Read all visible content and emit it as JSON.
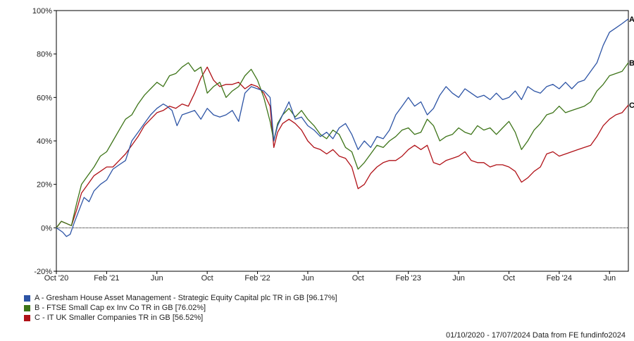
{
  "chart_data": {
    "type": "line",
    "x_tick_labels": [
      "Oct '20",
      "Feb '21",
      "Jun",
      "Oct",
      "Feb '22",
      "Jun",
      "Oct",
      "Feb '23",
      "Jun",
      "Oct",
      "Feb '24",
      "Jun"
    ],
    "x_tick_months": [
      0,
      4,
      8,
      12,
      16,
      20,
      24,
      28,
      32,
      36,
      40,
      44
    ],
    "x_range_months": [
      0,
      45.5
    ],
    "y_tick_labels": [
      "-20%",
      "0%",
      "20%",
      "40%",
      "60%",
      "80%",
      "100%"
    ],
    "y_ticks": [
      -20,
      0,
      20,
      40,
      60,
      80,
      100
    ],
    "ylim": [
      -20,
      100
    ],
    "grid": false,
    "zero_line": true,
    "series": [
      {
        "key": "A",
        "name": "A - Gresham House Asset Management - Strategic Equity Capital plc TR in GB [96.17%]",
        "color": "#2d54a5",
        "points": [
          [
            0,
            0
          ],
          [
            0.5,
            -2
          ],
          [
            0.8,
            -4
          ],
          [
            1.1,
            -3
          ],
          [
            1.4,
            2
          ],
          [
            1.8,
            8
          ],
          [
            2.2,
            14
          ],
          [
            2.6,
            12
          ],
          [
            3,
            17
          ],
          [
            3.5,
            20
          ],
          [
            4,
            22
          ],
          [
            4.5,
            27
          ],
          [
            5,
            29
          ],
          [
            5.5,
            31
          ],
          [
            6,
            40
          ],
          [
            6.5,
            44
          ],
          [
            7,
            48
          ],
          [
            7.5,
            52
          ],
          [
            8,
            55
          ],
          [
            8.5,
            57
          ],
          [
            8.8,
            56
          ],
          [
            9.2,
            54
          ],
          [
            9.6,
            47
          ],
          [
            10,
            52
          ],
          [
            10.5,
            53
          ],
          [
            11,
            54
          ],
          [
            11.5,
            50
          ],
          [
            12,
            55
          ],
          [
            12.5,
            52
          ],
          [
            13,
            51
          ],
          [
            13.5,
            52
          ],
          [
            14,
            54
          ],
          [
            14.5,
            49
          ],
          [
            15,
            62
          ],
          [
            15.5,
            65
          ],
          [
            16,
            64
          ],
          [
            16.5,
            63
          ],
          [
            17,
            60
          ],
          [
            17.3,
            40
          ],
          [
            17.6,
            47
          ],
          [
            18,
            52
          ],
          [
            18.5,
            58
          ],
          [
            19,
            50
          ],
          [
            19.5,
            51
          ],
          [
            20,
            47
          ],
          [
            20.5,
            45
          ],
          [
            21,
            42
          ],
          [
            21.5,
            44
          ],
          [
            22,
            41
          ],
          [
            22.5,
            46
          ],
          [
            23,
            48
          ],
          [
            23.5,
            43
          ],
          [
            24,
            36
          ],
          [
            24.5,
            40
          ],
          [
            25,
            37
          ],
          [
            25.5,
            42
          ],
          [
            26,
            41
          ],
          [
            26.5,
            45
          ],
          [
            27,
            52
          ],
          [
            27.5,
            56
          ],
          [
            28,
            60
          ],
          [
            28.5,
            56
          ],
          [
            29,
            58
          ],
          [
            29.5,
            52
          ],
          [
            30,
            55
          ],
          [
            30.5,
            61
          ],
          [
            31,
            65
          ],
          [
            31.5,
            62
          ],
          [
            32,
            60
          ],
          [
            32.5,
            64
          ],
          [
            33,
            62
          ],
          [
            33.5,
            60
          ],
          [
            34,
            61
          ],
          [
            34.5,
            59
          ],
          [
            35,
            62
          ],
          [
            35.5,
            59
          ],
          [
            36,
            60
          ],
          [
            36.5,
            63
          ],
          [
            37,
            59
          ],
          [
            37.5,
            65
          ],
          [
            38,
            63
          ],
          [
            38.5,
            62
          ],
          [
            39,
            65
          ],
          [
            39.5,
            66
          ],
          [
            40,
            64
          ],
          [
            40.5,
            67
          ],
          [
            41,
            64
          ],
          [
            41.5,
            67
          ],
          [
            42,
            68
          ],
          [
            42.5,
            72
          ],
          [
            43,
            76
          ],
          [
            43.5,
            84
          ],
          [
            44,
            90
          ],
          [
            44.5,
            92
          ],
          [
            45,
            94
          ],
          [
            45.5,
            96.17
          ]
        ]
      },
      {
        "key": "B",
        "name": "B - FTSE Small Cap ex Inv Co TR in GB [76.02%]",
        "color": "#3d7418",
        "points": [
          [
            0,
            0
          ],
          [
            0.4,
            3
          ],
          [
            0.8,
            2
          ],
          [
            1.2,
            1
          ],
          [
            1.6,
            11
          ],
          [
            2,
            20
          ],
          [
            2.5,
            24
          ],
          [
            3,
            28
          ],
          [
            3.5,
            33
          ],
          [
            4,
            35
          ],
          [
            4.5,
            40
          ],
          [
            5,
            45
          ],
          [
            5.5,
            50
          ],
          [
            6,
            52
          ],
          [
            6.5,
            57
          ],
          [
            7,
            61
          ],
          [
            7.5,
            64
          ],
          [
            8,
            67
          ],
          [
            8.5,
            65
          ],
          [
            9,
            70
          ],
          [
            9.5,
            71
          ],
          [
            10,
            74
          ],
          [
            10.5,
            76
          ],
          [
            11,
            72
          ],
          [
            11.5,
            74
          ],
          [
            12,
            62
          ],
          [
            12.5,
            65
          ],
          [
            13,
            67
          ],
          [
            13.5,
            60
          ],
          [
            14,
            63
          ],
          [
            14.5,
            65
          ],
          [
            15,
            70
          ],
          [
            15.5,
            73
          ],
          [
            16,
            68
          ],
          [
            16.5,
            60
          ],
          [
            17,
            49
          ],
          [
            17.3,
            40
          ],
          [
            17.6,
            48
          ],
          [
            18,
            52
          ],
          [
            18.5,
            55
          ],
          [
            19,
            51
          ],
          [
            19.5,
            54
          ],
          [
            20,
            50
          ],
          [
            20.5,
            47
          ],
          [
            21,
            43
          ],
          [
            21.5,
            41
          ],
          [
            22,
            45
          ],
          [
            22.5,
            43
          ],
          [
            23,
            37
          ],
          [
            23.5,
            35
          ],
          [
            24,
            27
          ],
          [
            24.5,
            30
          ],
          [
            25,
            34
          ],
          [
            25.5,
            38
          ],
          [
            26,
            37
          ],
          [
            26.5,
            40
          ],
          [
            27,
            42
          ],
          [
            27.5,
            45
          ],
          [
            28,
            46
          ],
          [
            28.5,
            43
          ],
          [
            29,
            44
          ],
          [
            29.5,
            50
          ],
          [
            30,
            47
          ],
          [
            30.5,
            40
          ],
          [
            31,
            42
          ],
          [
            31.5,
            43
          ],
          [
            32,
            46
          ],
          [
            32.5,
            44
          ],
          [
            33,
            43
          ],
          [
            33.5,
            47
          ],
          [
            34,
            45
          ],
          [
            34.5,
            46
          ],
          [
            35,
            43
          ],
          [
            35.5,
            46
          ],
          [
            36,
            49
          ],
          [
            36.5,
            44
          ],
          [
            37,
            36
          ],
          [
            37.5,
            40
          ],
          [
            38,
            45
          ],
          [
            38.5,
            48
          ],
          [
            39,
            52
          ],
          [
            39.5,
            53
          ],
          [
            40,
            56
          ],
          [
            40.5,
            53
          ],
          [
            41,
            54
          ],
          [
            41.5,
            55
          ],
          [
            42,
            56
          ],
          [
            42.5,
            58
          ],
          [
            43,
            63
          ],
          [
            43.5,
            66
          ],
          [
            44,
            70
          ],
          [
            44.5,
            71
          ],
          [
            45,
            72
          ],
          [
            45.5,
            76.02
          ]
        ]
      },
      {
        "key": "C",
        "name": "C - IT UK Smaller Companies TR in GB [56.52%]",
        "color": "#b01117",
        "points": [
          [
            0,
            0
          ],
          [
            0.4,
            3
          ],
          [
            0.8,
            2
          ],
          [
            1.2,
            1
          ],
          [
            1.6,
            8
          ],
          [
            2,
            16
          ],
          [
            2.5,
            20
          ],
          [
            3,
            24
          ],
          [
            3.5,
            26
          ],
          [
            4,
            28
          ],
          [
            4.5,
            28
          ],
          [
            5,
            31
          ],
          [
            5.5,
            34
          ],
          [
            6,
            38
          ],
          [
            6.5,
            42
          ],
          [
            7,
            47
          ],
          [
            7.5,
            50
          ],
          [
            8,
            53
          ],
          [
            8.5,
            54
          ],
          [
            9,
            56
          ],
          [
            9.5,
            55
          ],
          [
            10,
            57
          ],
          [
            10.5,
            56
          ],
          [
            11,
            62
          ],
          [
            11.5,
            69
          ],
          [
            12,
            74
          ],
          [
            12.5,
            68
          ],
          [
            13,
            65
          ],
          [
            13.5,
            66
          ],
          [
            14,
            66
          ],
          [
            14.5,
            67
          ],
          [
            15,
            64
          ],
          [
            15.5,
            66
          ],
          [
            16,
            65
          ],
          [
            16.5,
            62
          ],
          [
            17,
            56
          ],
          [
            17.3,
            37
          ],
          [
            17.6,
            44
          ],
          [
            18,
            48
          ],
          [
            18.5,
            50
          ],
          [
            19,
            48
          ],
          [
            19.5,
            45
          ],
          [
            20,
            40
          ],
          [
            20.5,
            37
          ],
          [
            21,
            36
          ],
          [
            21.5,
            34
          ],
          [
            22,
            36
          ],
          [
            22.5,
            33
          ],
          [
            23,
            32
          ],
          [
            23.5,
            28
          ],
          [
            24,
            18
          ],
          [
            24.5,
            20
          ],
          [
            25,
            25
          ],
          [
            25.5,
            28
          ],
          [
            26,
            30
          ],
          [
            26.5,
            31
          ],
          [
            27,
            31
          ],
          [
            27.5,
            33
          ],
          [
            28,
            36
          ],
          [
            28.5,
            38
          ],
          [
            29,
            36
          ],
          [
            29.5,
            38
          ],
          [
            30,
            30
          ],
          [
            30.5,
            29
          ],
          [
            31,
            31
          ],
          [
            31.5,
            32
          ],
          [
            32,
            33
          ],
          [
            32.5,
            35
          ],
          [
            33,
            31
          ],
          [
            33.5,
            30
          ],
          [
            34,
            30
          ],
          [
            34.5,
            28
          ],
          [
            35,
            29
          ],
          [
            35.5,
            29
          ],
          [
            36,
            28
          ],
          [
            36.5,
            26
          ],
          [
            37,
            21
          ],
          [
            37.5,
            23
          ],
          [
            38,
            26
          ],
          [
            38.5,
            28
          ],
          [
            39,
            34
          ],
          [
            39.5,
            35
          ],
          [
            40,
            33
          ],
          [
            40.5,
            34
          ],
          [
            41,
            35
          ],
          [
            41.5,
            36
          ],
          [
            42,
            37
          ],
          [
            42.5,
            38
          ],
          [
            43,
            42
          ],
          [
            43.5,
            47
          ],
          [
            44,
            50
          ],
          [
            44.5,
            52
          ],
          [
            45,
            53
          ],
          [
            45.5,
            56.52
          ]
        ]
      }
    ]
  },
  "footer": {
    "text": "01/10/2020 - 17/07/2024 Data from FE fundinfo2024"
  }
}
